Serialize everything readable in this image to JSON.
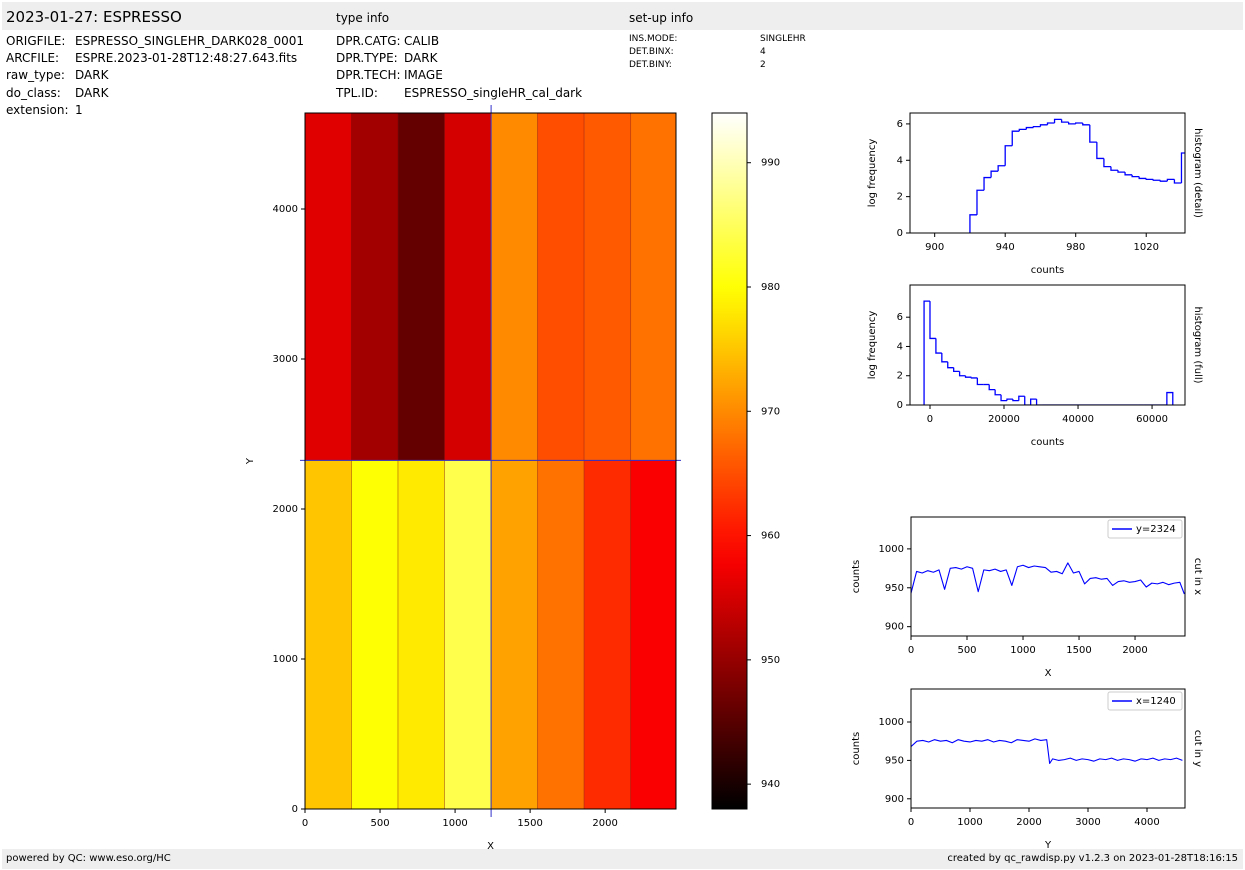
{
  "header": {
    "title": "2023-01-27: ESPRESSO",
    "type_info_title": "type info",
    "setup_info_title": "set-up info"
  },
  "file_info": [
    {
      "key": "ORIGFILE:",
      "value": "ESPRESSO_SINGLEHR_DARK028_0001"
    },
    {
      "key": "ARCFILE:",
      "value": "ESPRE.2023-01-28T12:48:27.643.fits"
    },
    {
      "key": "raw_type:",
      "value": "DARK"
    },
    {
      "key": "do_class:",
      "value": "DARK"
    },
    {
      "key": "extension:",
      "value": "1"
    }
  ],
  "type_info": [
    {
      "key": "DPR.CATG:",
      "value": "CALIB"
    },
    {
      "key": "DPR.TYPE:",
      "value": "DARK"
    },
    {
      "key": "DPR.TECH:",
      "value": "IMAGE"
    },
    {
      "key": "TPL.ID:",
      "value": "ESPRESSO_singleHR_cal_dark"
    }
  ],
  "setup_info": [
    {
      "key": "INS.MODE:",
      "value": "SINGLEHR"
    },
    {
      "key": "DET.BINX:",
      "value": "4"
    },
    {
      "key": "DET.BINY:",
      "value": "2"
    }
  ],
  "footer": {
    "left": "powered by QC: www.eso.org/HC",
    "right": "created by qc_rawdisp.py v1.2.3 on 2023-01-28T18:16:15"
  },
  "chart_data": [
    {
      "type": "image",
      "colormap": "hot",
      "xlim": [
        0,
        2472
      ],
      "ylim": [
        0,
        4640
      ],
      "xticks": [
        0,
        500,
        1000,
        1500,
        2000
      ],
      "yticks": [
        0,
        1000,
        2000,
        3000,
        4000
      ],
      "xlabel": "X",
      "ylabel": "Y",
      "column_edges": [
        0,
        310,
        620,
        930,
        1240,
        1550,
        1860,
        2170,
        2472
      ],
      "row_edges": [
        0,
        2324,
        4640
      ],
      "values": [
        [
          975,
          980,
          978,
          984,
          972,
          968,
          962,
          958
        ],
        [
          956,
          951,
          946,
          955,
          970,
          965,
          966,
          968
        ]
      ],
      "crosshair": [
        1240,
        2324
      ],
      "crosshair_color": "#3333cc",
      "clim": [
        938,
        994
      ],
      "cticks": [
        940,
        950,
        960,
        970,
        980,
        990
      ]
    },
    {
      "type": "histogram",
      "color": "#0000ff",
      "xlim": [
        886,
        1042
      ],
      "ylim": [
        0,
        6.6
      ],
      "xticks": [
        900,
        940,
        980,
        1020
      ],
      "yticks": [
        0,
        2,
        4,
        6
      ],
      "xlabel": "counts",
      "ylabel": "log frequency",
      "side_label": "histogram (detail)",
      "bins": [
        920,
        924,
        928,
        932,
        936,
        940,
        944,
        948,
        952,
        956,
        960,
        964,
        968,
        972,
        976,
        980,
        984,
        988,
        992,
        996,
        1000,
        1004,
        1008,
        1012,
        1016,
        1020,
        1024,
        1028,
        1032,
        1036,
        1040,
        1044
      ],
      "values": [
        1.0,
        2.35,
        3.05,
        3.4,
        3.7,
        4.8,
        5.6,
        5.7,
        5.8,
        5.85,
        5.95,
        6.05,
        6.25,
        6.1,
        6.0,
        6.05,
        5.95,
        5.0,
        4.1,
        3.65,
        3.45,
        3.35,
        3.2,
        3.1,
        3.0,
        2.95,
        2.9,
        2.85,
        2.95,
        2.75,
        4.4
      ]
    },
    {
      "type": "histogram",
      "color": "#0000ff",
      "xlim": [
        -5400,
        68900
      ],
      "ylim": [
        0,
        8.2
      ],
      "xticks": [
        0,
        20000,
        40000,
        60000
      ],
      "yticks": [
        0,
        2,
        4,
        6
      ],
      "xlabel": "counts",
      "ylabel": "log frequency",
      "side_label": "histogram (full)",
      "bins": [
        -1600,
        0,
        1600,
        3200,
        4800,
        6400,
        8000,
        9600,
        11200,
        12800,
        14400,
        16000,
        17600,
        19200,
        20800,
        22400,
        24000,
        25600,
        27200,
        28800,
        30400,
        32000,
        33600,
        35200,
        36800,
        38400,
        40000,
        41600,
        43200,
        44800,
        46400,
        48000,
        49600,
        51200,
        52800,
        54400,
        56000,
        57600,
        59200,
        60800,
        62400,
        64000,
        65600
      ],
      "values": [
        7.1,
        4.55,
        3.55,
        2.95,
        2.55,
        2.3,
        2.0,
        1.9,
        1.85,
        1.4,
        1.4,
        1.05,
        0.7,
        0.3,
        0.4,
        0.3,
        0.6,
        0,
        0.4,
        0,
        0,
        0,
        0,
        0,
        0,
        0,
        0,
        0,
        0,
        0,
        0,
        0,
        0,
        0,
        0,
        0,
        0,
        0,
        0,
        0,
        0,
        0.85
      ]
    },
    {
      "type": "line",
      "legend": "upper right",
      "xlim": [
        0,
        2446
      ],
      "ylim": [
        888,
        1041
      ],
      "xticks": [
        0,
        500,
        1000,
        1500,
        2000
      ],
      "yticks": [
        900,
        950,
        1000
      ],
      "xlabel": "X",
      "ylabel": "counts",
      "side_label": "cut in x",
      "x": [
        0,
        50,
        100,
        150,
        200,
        250,
        300,
        350,
        400,
        450,
        500,
        550,
        600,
        650,
        700,
        750,
        800,
        850,
        900,
        950,
        1000,
        1050,
        1100,
        1150,
        1200,
        1250,
        1300,
        1350,
        1400,
        1450,
        1500,
        1550,
        1600,
        1650,
        1700,
        1750,
        1800,
        1850,
        1900,
        1950,
        2000,
        2050,
        2100,
        2150,
        2200,
        2250,
        2300,
        2350,
        2400,
        2440
      ],
      "series": [
        {
          "name": "y=2324",
          "color": "#0000ff",
          "values": [
            943,
            971,
            969,
            972,
            970,
            973,
            948,
            975,
            976,
            974,
            977,
            975,
            945,
            973,
            972,
            974,
            971,
            973,
            953,
            977,
            979,
            976,
            978,
            977,
            976,
            970,
            971,
            968,
            982,
            969,
            971,
            955,
            962,
            963,
            961,
            962,
            953,
            958,
            959,
            957,
            958,
            960,
            951,
            956,
            955,
            957,
            954,
            956,
            957,
            942
          ]
        }
      ]
    },
    {
      "type": "line",
      "legend": "upper right",
      "xlim": [
        0,
        4644
      ],
      "ylim": [
        888,
        1043
      ],
      "xticks": [
        0,
        1000,
        2000,
        3000,
        4000
      ],
      "yticks": [
        900,
        950,
        1000
      ],
      "xlabel": "Y",
      "ylabel": "counts",
      "side_label": "cut in y",
      "x": [
        0,
        100,
        200,
        300,
        400,
        500,
        600,
        700,
        800,
        900,
        1000,
        1100,
        1200,
        1300,
        1400,
        1500,
        1600,
        1700,
        1800,
        1900,
        2000,
        2100,
        2200,
        2300,
        2350,
        2400,
        2500,
        2600,
        2700,
        2800,
        2900,
        3000,
        3100,
        3200,
        3300,
        3400,
        3500,
        3600,
        3700,
        3800,
        3900,
        4000,
        4100,
        4200,
        4300,
        4400,
        4500,
        4600
      ],
      "series": [
        {
          "name": "x=1240",
          "color": "#0000ff",
          "values": [
            968,
            975,
            976,
            974,
            977,
            975,
            976,
            973,
            977,
            975,
            974,
            976,
            975,
            977,
            974,
            976,
            975,
            973,
            977,
            976,
            975,
            978,
            976,
            977,
            946,
            952,
            950,
            951,
            953,
            950,
            952,
            951,
            949,
            952,
            951,
            953,
            950,
            952,
            951,
            949,
            952,
            951,
            953,
            950,
            952,
            951,
            953,
            950
          ]
        }
      ]
    }
  ]
}
